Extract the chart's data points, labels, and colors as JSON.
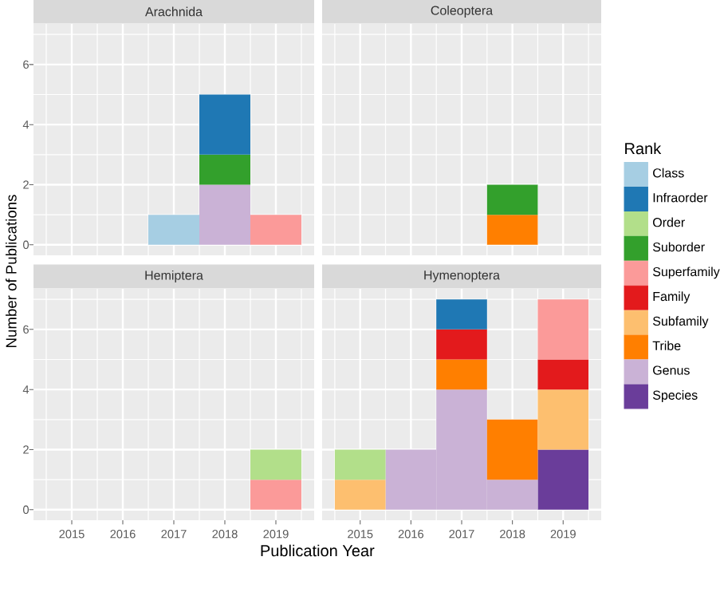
{
  "chart_data": [
    {
      "type": "bar",
      "title": "Arachnida",
      "ylabel": "Number of Publications",
      "stacked": true,
      "grid": true,
      "tick_labels": "y",
      "x": [
        2017,
        2018,
        2019
      ],
      "xlim": [
        2014.25,
        2019.75
      ],
      "xticks": [
        2015,
        2016,
        2017,
        2018,
        2019
      ],
      "ylim": [
        -0.35,
        7.35
      ],
      "yticks": [
        0,
        2,
        4,
        6
      ],
      "series": [
        {
          "color": "#cab2d6",
          "values": [
            null,
            2,
            null
          ]
        },
        {
          "color": "#fb9a99",
          "values": [
            null,
            null,
            1
          ]
        },
        {
          "color": "#33a02c",
          "values": [
            null,
            1,
            null
          ]
        },
        {
          "color": "#1f78b4",
          "values": [
            null,
            2,
            null
          ]
        },
        {
          "color": "#a6cee3",
          "values": [
            1,
            null,
            null
          ]
        }
      ]
    },
    {
      "type": "bar",
      "title": "Coleoptera",
      "stacked": true,
      "grid": true,
      "tick_labels": false,
      "x": [
        2018
      ],
      "xlim": [
        2014.25,
        2019.75
      ],
      "xticks": [
        2015,
        2016,
        2017,
        2018,
        2019
      ],
      "ylim": [
        -0.35,
        7.35
      ],
      "yticks": [
        0,
        2,
        4,
        6
      ],
      "series": [
        {
          "color": "#ff7f00",
          "values": [
            1
          ]
        },
        {
          "color": "#33a02c",
          "values": [
            1
          ]
        }
      ]
    },
    {
      "type": "bar",
      "title": "Hemiptera",
      "xlabel": "Publication Year",
      "stacked": true,
      "grid": true,
      "x": [
        2019
      ],
      "xlim": [
        2014.25,
        2019.75
      ],
      "xticks": [
        2015,
        2016,
        2017,
        2018,
        2019
      ],
      "ylim": [
        -0.35,
        7.35
      ],
      "yticks": [
        0,
        2,
        4,
        6
      ],
      "series": [
        {
          "color": "#fb9a99",
          "values": [
            1
          ]
        },
        {
          "color": "#b2df8a",
          "values": [
            1
          ]
        }
      ]
    },
    {
      "type": "bar",
      "title": "Hymenoptera",
      "stacked": true,
      "grid": true,
      "tick_labels": "x",
      "legend": "right",
      "legend_title": "Rank",
      "x": [
        2015,
        2016,
        2017,
        2018,
        2019
      ],
      "xlim": [
        2014.25,
        2019.75
      ],
      "xticks": [
        2015,
        2016,
        2017,
        2018,
        2019
      ],
      "ylim": [
        -0.35,
        7.35
      ],
      "yticks": [
        0,
        2,
        4,
        6
      ],
      "series": [
        {
          "name": "Species",
          "color": "#6a3d9a",
          "values": [
            null,
            null,
            null,
            null,
            2
          ]
        },
        {
          "name": "Genus",
          "color": "#cab2d6",
          "values": [
            null,
            2,
            4,
            1,
            null
          ]
        },
        {
          "name": "Tribe",
          "color": "#ff7f00",
          "values": [
            null,
            null,
            1,
            2,
            null
          ]
        },
        {
          "name": "Subfamily",
          "color": "#fdbf6f",
          "values": [
            1,
            null,
            null,
            null,
            2
          ]
        },
        {
          "name": "Family",
          "color": "#e31a1c",
          "values": [
            null,
            null,
            1,
            null,
            1
          ]
        },
        {
          "name": "Superfamily",
          "color": "#fb9a99",
          "values": [
            null,
            null,
            null,
            null,
            2
          ]
        },
        {
          "name": "Suborder",
          "color": "#33a02c",
          "values": [
            null,
            null,
            null,
            null,
            null
          ]
        },
        {
          "name": "Order",
          "color": "#b2df8a",
          "values": [
            1,
            null,
            null,
            null,
            null
          ]
        },
        {
          "name": "Infraorder",
          "color": "#1f78b4",
          "values": [
            null,
            null,
            1,
            null,
            null
          ]
        },
        {
          "name": "Class",
          "color": "#a6cee3",
          "values": [
            null,
            null,
            null,
            null,
            null
          ]
        }
      ]
    }
  ]
}
